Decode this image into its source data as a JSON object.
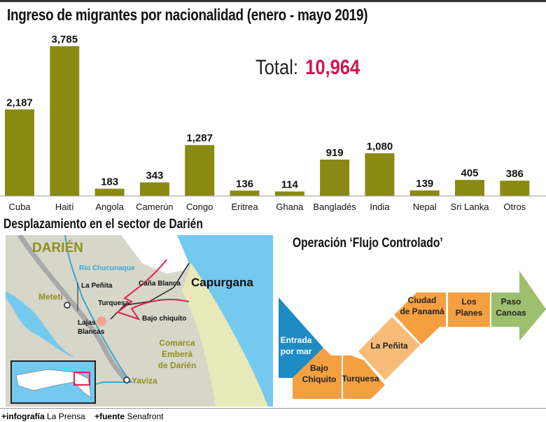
{
  "chart_data": {
    "type": "bar",
    "title": "Ingreso de migrantes por nacionalidad (enero - mayo 2019)",
    "categories": [
      "Cuba",
      "Haití",
      "Angola",
      "Camerún",
      "Congo",
      "Eritrea",
      "Ghana",
      "Bangladés",
      "India",
      "Nepal",
      "Sri Lanka",
      "Otros"
    ],
    "values": [
      2187,
      3785,
      183,
      343,
      1287,
      136,
      114,
      919,
      1080,
      139,
      405,
      386
    ],
    "value_labels": [
      "2,187",
      "3,785",
      "183",
      "343",
      "1,287",
      "136",
      "114",
      "919",
      "1,080",
      "139",
      "405",
      "386"
    ],
    "bar_color": "#8a8a12",
    "grid": false,
    "ylim": [
      0,
      3785
    ]
  },
  "total": {
    "label": "Total:",
    "value": "10,964",
    "color": "#d0164e"
  },
  "map": {
    "title": "Desplazamiento en el sector de Darién",
    "labels": {
      "region": "DARIÉN",
      "river": "Río Chucunaque",
      "penita": "La Peñita",
      "meteti": "Meteti",
      "turquesa": "Turquesa",
      "lajas1": "Lajas",
      "lajas2": "Blancas",
      "cana": "Caña Blanca",
      "capurgana": "Capurgana",
      "bajo": "Bajo chiquito",
      "comarca1": "Comarca",
      "comarca2": "Emberá",
      "comarca3": "de Darién",
      "yaviza": "Yaviza"
    }
  },
  "flow": {
    "title": "Operación ‘Flujo Controlado’",
    "steps": [
      {
        "l1": "Entrada",
        "l2": "por mar"
      },
      {
        "l1": "Bajo",
        "l2": "Chiquito"
      },
      {
        "l1": "Turquesa",
        "l2": ""
      },
      {
        "l1": "La Peñita",
        "l2": ""
      },
      {
        "l1": "Ciudad",
        "l2": "de Panamá"
      },
      {
        "l1": "Los",
        "l2": "Planes"
      },
      {
        "l1": "Paso",
        "l2": "Canoas"
      }
    ],
    "colors": {
      "entry": "#1e8bc3",
      "step": "#f5a040",
      "light": "#f8bb78",
      "end": "#9dbf6e"
    }
  },
  "credits": {
    "k1": "+infografía",
    "v1": "La Prensa",
    "k2": "+fuente",
    "v2": "Senafront"
  }
}
